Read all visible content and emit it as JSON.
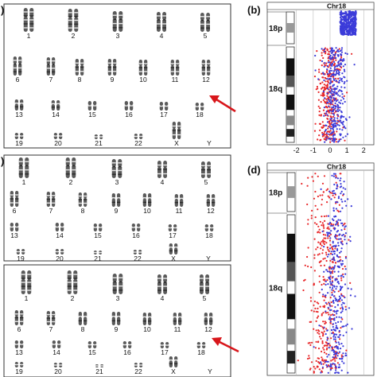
{
  "panel_labels": {
    "a": ")",
    "b": "(b)",
    "c": ")",
    "d": "(d)"
  },
  "karyotype_labels": [
    "1",
    "2",
    "3",
    "4",
    "5",
    "6",
    "7",
    "8",
    "9",
    "10",
    "11",
    "12",
    "13",
    "14",
    "15",
    "16",
    "17",
    "18",
    "19",
    "20",
    "21",
    "22",
    "X",
    "Y"
  ],
  "chart_b": {
    "title": "Chr18",
    "bands": [
      "18p",
      "18q"
    ],
    "ticks": [
      "-2",
      "-1",
      "0",
      "1",
      "2"
    ]
  },
  "chart_d": {
    "title": "Chr18",
    "bands": [
      "18p",
      "18q"
    ],
    "ticks": [
      "-2",
      "-1",
      "0",
      "1",
      "2"
    ]
  },
  "colors": {
    "red": "#e8282a",
    "blue": "#3b3bd9",
    "arrow": "#d8161b",
    "chromosome": "#5a5a5a"
  },
  "chart_data": [
    {
      "type": "scatter",
      "title": "Chr18",
      "xlabel": "",
      "ylabel": "",
      "xlim": [
        -2.6,
        2.6
      ],
      "x_ticks": [
        -2,
        -1,
        0,
        1,
        2
      ],
      "series": [
        {
          "color": "#3b3bd9",
          "region": "18p",
          "x_center": 0.9,
          "x_spread": 0.45
        },
        {
          "color": "#e8282a",
          "region": "18q",
          "x_center": -0.05,
          "x_spread": 0.35
        },
        {
          "color": "#3b3bd9",
          "region": "18q",
          "x_center": 0.3,
          "x_spread": 0.35
        }
      ]
    },
    {
      "type": "scatter",
      "title": "Chr18",
      "xlabel": "",
      "ylabel": "",
      "xlim": [
        -2.6,
        2.6
      ],
      "x_ticks": [
        -2,
        -1,
        0,
        1,
        2
      ],
      "series": [
        {
          "color": "#e8282a",
          "region": "18p",
          "x_center": -0.2,
          "x_spread": 0.6
        },
        {
          "color": "#3b3bd9",
          "region": "18p",
          "x_center": 0.45,
          "x_spread": 0.35
        },
        {
          "color": "#e8282a",
          "region": "18q",
          "x_center": -0.25,
          "x_spread": 0.55
        },
        {
          "color": "#3b3bd9",
          "region": "18q",
          "x_center": 0.35,
          "x_spread": 0.35
        }
      ]
    }
  ]
}
